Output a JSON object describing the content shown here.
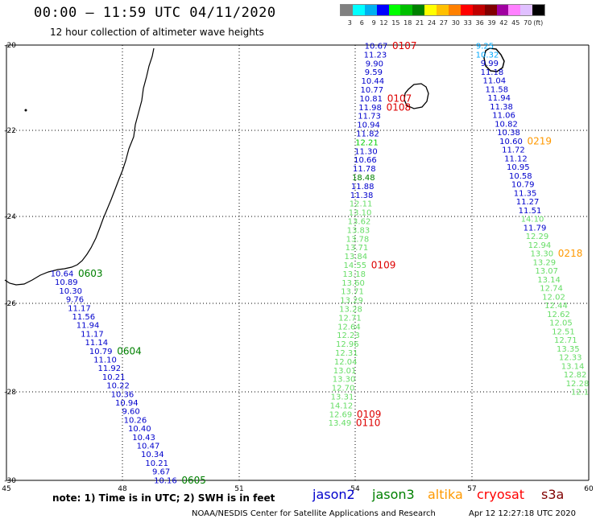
{
  "header": {
    "title": "00:00 – 11:59 UTC 04/11/2020",
    "subtitle": "12 hour collection of altimeter wave heights"
  },
  "legend": {
    "unit": "(ft)",
    "colors": [
      "#808080",
      "#00ffff",
      "#00b0f0",
      "#0000ff",
      "#00ff00",
      "#00c000",
      "#008000",
      "#ffff00",
      "#ffc000",
      "#ff8000",
      "#ff0000",
      "#c00000",
      "#800000",
      "#a000a0",
      "#ff80ff",
      "#e0c0ff",
      "#000000"
    ],
    "ticks": [
      "3",
      "6",
      "9",
      "12",
      "15",
      "18",
      "21",
      "24",
      "27",
      "30",
      "33",
      "36",
      "39",
      "42",
      "45",
      "70"
    ]
  },
  "axes": {
    "x_ticks": [
      "45",
      "48",
      "51",
      "54",
      "57",
      "60"
    ],
    "y_ticks": [
      "-20",
      "-22",
      "-24",
      "-26",
      "-28",
      "-30"
    ]
  },
  "footer": {
    "note": "note:  1) Time is in UTC;  2) SWH is in feet",
    "credit": "NOAA/NESDIS Center for Satellite Applications and Research",
    "timestamp": "Apr 12 12:27:18 UTC 2020"
  },
  "satellites": [
    {
      "name": "jason2",
      "color": "#0000cc"
    },
    {
      "name": "jason3",
      "color": "#008000"
    },
    {
      "name": "altika",
      "color": "#ff9900"
    },
    {
      "name": "cryosat",
      "color": "#ff0000"
    },
    {
      "name": "s3a",
      "color": "#800000"
    }
  ],
  "tracks": [
    {
      "id": "west",
      "x0": 77,
      "dx": 5.35,
      "y0": 340,
      "dy": 10.7,
      "color": "#0000cc",
      "values": [
        "10.64",
        "10.89",
        "10.30",
        "9.76",
        "11.17",
        "11.56",
        "11.94",
        "11.17",
        "11.14",
        "10.79",
        "11.10",
        "11.92",
        "10.21",
        "10.22",
        "10.36",
        "10.94",
        "9.60",
        "10.26",
        "10.40",
        "10.43",
        "10.47",
        "10.34",
        "10.21",
        "9.67",
        "10.16"
      ],
      "times": [
        {
          "i": 0,
          "text": "0603",
          "color": "#008000"
        },
        {
          "i": 9,
          "text": "0604",
          "color": "#008000"
        },
        {
          "i": 24,
          "text": "0605",
          "color": "#008000"
        }
      ]
    },
    {
      "id": "middle",
      "x0": 467,
      "dx": -1.05,
      "y0": 57,
      "dy": 10.9,
      "values": [
        {
          "v": "10.67",
          "c": "#0000cc"
        },
        {
          "v": "11.23",
          "c": "#0000cc"
        },
        {
          "v": "9.90",
          "c": "#0000cc"
        },
        {
          "v": "9.59",
          "c": "#0000cc"
        },
        {
          "v": "10.44",
          "c": "#0000cc"
        },
        {
          "v": "10.77",
          "c": "#0000cc"
        },
        {
          "v": "10.81",
          "c": "#0000cc"
        },
        {
          "v": "11.98",
          "c": "#0000cc"
        },
        {
          "v": "11.73",
          "c": "#0000cc"
        },
        {
          "v": "10.94",
          "c": "#0000cc"
        },
        {
          "v": "11.82",
          "c": "#0000cc"
        },
        {
          "v": "12.21",
          "c": "#00cc00"
        },
        {
          "v": "11.30",
          "c": "#0000cc"
        },
        {
          "v": "10.66",
          "c": "#0000cc"
        },
        {
          "v": "11.78",
          "c": "#0000cc"
        },
        {
          "v": "18.48",
          "c": "#008000"
        },
        {
          "v": "11.88",
          "c": "#0000cc"
        },
        {
          "v": "11.38",
          "c": "#0000cc"
        },
        {
          "v": "12.11",
          "c": "#66dd66"
        },
        {
          "v": "13.10",
          "c": "#66dd66"
        },
        {
          "v": "13.62",
          "c": "#66dd66"
        },
        {
          "v": "13.83",
          "c": "#66dd66"
        },
        {
          "v": "13.78",
          "c": "#66dd66"
        },
        {
          "v": "13.71",
          "c": "#66dd66"
        },
        {
          "v": "13.84",
          "c": "#66dd66"
        },
        {
          "v": "14.55",
          "c": "#66dd66"
        },
        {
          "v": "13.18",
          "c": "#66dd66"
        },
        {
          "v": "13.60",
          "c": "#66dd66"
        },
        {
          "v": "13.71",
          "c": "#66dd66"
        },
        {
          "v": "13.29",
          "c": "#66dd66"
        },
        {
          "v": "13.28",
          "c": "#66dd66"
        },
        {
          "v": "12.71",
          "c": "#66dd66"
        },
        {
          "v": "12.64",
          "c": "#66dd66"
        },
        {
          "v": "12.23",
          "c": "#66dd66"
        },
        {
          "v": "12.96",
          "c": "#66dd66"
        },
        {
          "v": "12.31",
          "c": "#66dd66"
        },
        {
          "v": "12.04",
          "c": "#66dd66"
        },
        {
          "v": "13.01",
          "c": "#66dd66"
        },
        {
          "v": "13.30",
          "c": "#66dd66"
        },
        {
          "v": "12.70",
          "c": "#66dd66"
        },
        {
          "v": "13.31",
          "c": "#66dd66"
        },
        {
          "v": "14.12",
          "c": "#66dd66"
        },
        {
          "v": "12.69",
          "c": "#66dd66"
        },
        {
          "v": "13.49",
          "c": "#66dd66"
        }
      ],
      "times": [
        {
          "i": 0,
          "text": "0107",
          "color": "#dd0000"
        },
        {
          "i": 6,
          "text": "0107",
          "color": "#dd0000"
        },
        {
          "i": 7,
          "text": "0108",
          "color": "#dd0000"
        },
        {
          "i": 25,
          "text": "0109",
          "color": "#dd0000"
        },
        {
          "i": 42,
          "text": "0109",
          "color": "#dd0000"
        },
        {
          "i": 43,
          "text": "0110",
          "color": "#dd0000"
        }
      ]
    },
    {
      "id": "east",
      "x0": 602,
      "dx": 2.95,
      "y0": 57,
      "dy": 10.75,
      "values": [
        {
          "v": "9.25",
          "c": "#00aaff"
        },
        {
          "v": "10.32",
          "c": "#00aaff"
        },
        {
          "v": "9.99",
          "c": "#0000cc"
        },
        {
          "v": "11.18",
          "c": "#0000cc"
        },
        {
          "v": "11.04",
          "c": "#0000cc"
        },
        {
          "v": "11.58",
          "c": "#0000cc"
        },
        {
          "v": "11.94",
          "c": "#0000cc"
        },
        {
          "v": "11.38",
          "c": "#0000cc"
        },
        {
          "v": "11.06",
          "c": "#0000cc"
        },
        {
          "v": "10.82",
          "c": "#0000cc"
        },
        {
          "v": "10.38",
          "c": "#0000cc"
        },
        {
          "v": "10.60",
          "c": "#0000cc"
        },
        {
          "v": "11.72",
          "c": "#0000cc"
        },
        {
          "v": "11.12",
          "c": "#0000cc"
        },
        {
          "v": "10.95",
          "c": "#0000cc"
        },
        {
          "v": "10.58",
          "c": "#0000cc"
        },
        {
          "v": "10.79",
          "c": "#0000cc"
        },
        {
          "v": "11.35",
          "c": "#0000cc"
        },
        {
          "v": "11.27",
          "c": "#0000cc"
        },
        {
          "v": "11.51",
          "c": "#0000cc"
        },
        {
          "v": "14.10",
          "c": "#66dd66"
        },
        {
          "v": "11.79",
          "c": "#0000cc"
        },
        {
          "v": "12.29",
          "c": "#66dd66"
        },
        {
          "v": "12.94",
          "c": "#66dd66"
        },
        {
          "v": "13.30",
          "c": "#66dd66"
        },
        {
          "v": "13.29",
          "c": "#66dd66"
        },
        {
          "v": "13.07",
          "c": "#66dd66"
        },
        {
          "v": "13.14",
          "c": "#66dd66"
        },
        {
          "v": "12.74",
          "c": "#66dd66"
        },
        {
          "v": "12.02",
          "c": "#66dd66"
        },
        {
          "v": "12.44",
          "c": "#66dd66"
        },
        {
          "v": "12.62",
          "c": "#66dd66"
        },
        {
          "v": "12.05",
          "c": "#66dd66"
        },
        {
          "v": "12.51",
          "c": "#66dd66"
        },
        {
          "v": "12.71",
          "c": "#66dd66"
        },
        {
          "v": "13.35",
          "c": "#66dd66"
        },
        {
          "v": "12.33",
          "c": "#66dd66"
        },
        {
          "v": "13.14",
          "c": "#66dd66"
        },
        {
          "v": "12.82",
          "c": "#66dd66"
        },
        {
          "v": "12.28",
          "c": "#66dd66"
        },
        {
          "v": "12.1",
          "c": "#66dd66"
        }
      ],
      "times": [
        {
          "i": 11,
          "text": "0219",
          "color": "#ff9900"
        },
        {
          "i": 24,
          "text": "0218",
          "color": "#ff9900"
        }
      ]
    }
  ]
}
